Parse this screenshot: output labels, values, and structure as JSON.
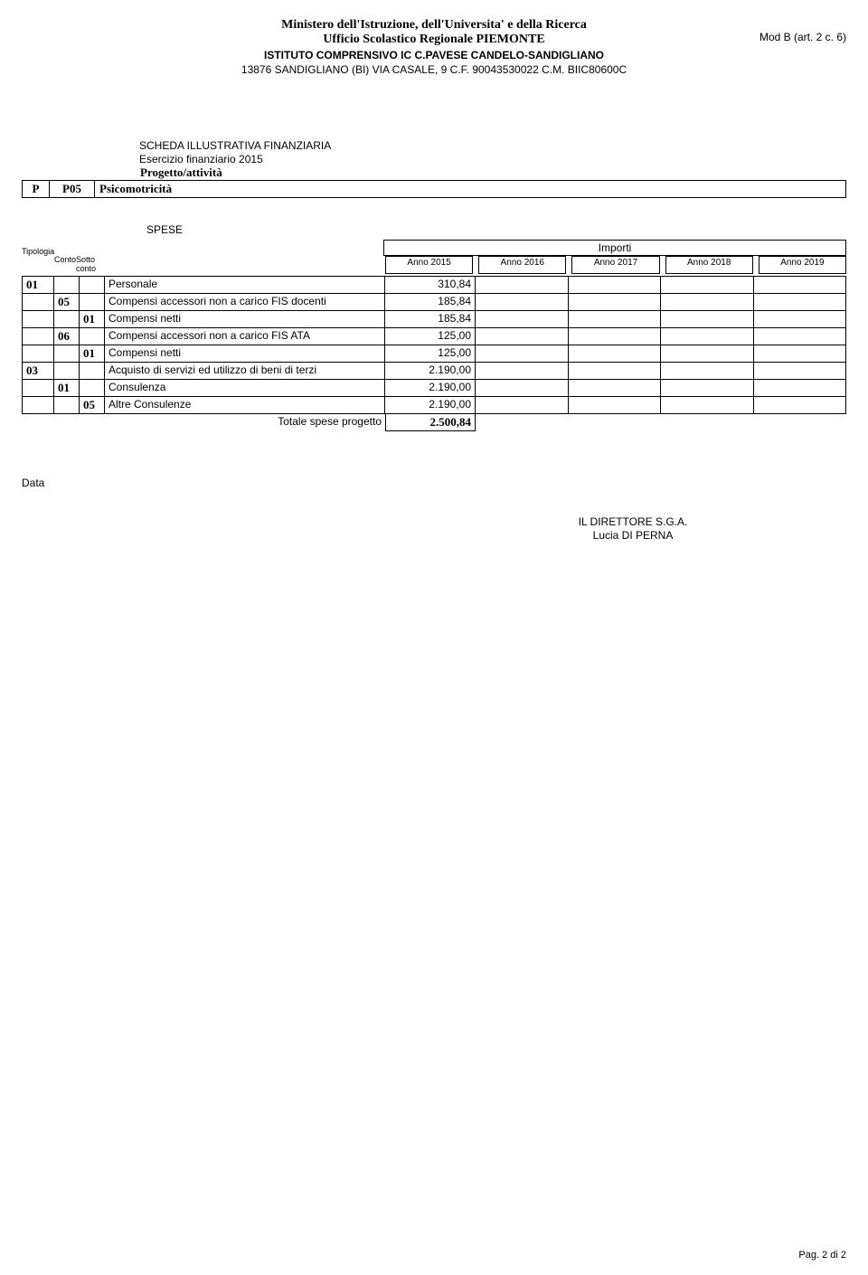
{
  "header": {
    "line1": "Ministero dell'Istruzione, dell'Universita' e della Ricerca",
    "line2": "Ufficio Scolastico Regionale PIEMONTE",
    "line3": "ISTITUTO COMPRENSIVO IC C.PAVESE CANDELO-SANDIGLIANO",
    "line4": "13876 SANDIGLIANO (BI) VIA CASALE, 9 C.F. 90043530022 C.M. BIIC80600C",
    "mod_b": "Mod B (art. 2 c. 6)"
  },
  "scheda": {
    "line1": "SCHEDA ILLUSTRATIVA FINANZIARIA",
    "line2": "Esercizio finanziario 2015"
  },
  "project": {
    "label": "Progetto/attività",
    "p": "P",
    "code": "P05",
    "name": "Psicomotricità"
  },
  "spese": {
    "title": "SPESE",
    "tipologia": "Tipologia",
    "importi": "Importi",
    "conto": "Conto",
    "sottoconto_1": "Sotto",
    "sottoconto_2": "conto",
    "years": [
      "Anno 2015",
      "Anno 2016",
      "Anno 2017",
      "Anno 2018",
      "Anno 2019"
    ],
    "rows": [
      {
        "c1": "01",
        "c2": "",
        "c3": "",
        "desc": "Personale",
        "v1": "310,84"
      },
      {
        "c1": "",
        "c2": "05",
        "c3": "",
        "desc": "Compensi accessori non a carico FIS docenti",
        "v1": "185,84"
      },
      {
        "c1": "",
        "c2": "",
        "c3": "01",
        "desc": "Compensi netti",
        "v1": "185,84"
      },
      {
        "c1": "",
        "c2": "06",
        "c3": "",
        "desc": "Compensi accessori non a carico FIS ATA",
        "v1": "125,00"
      },
      {
        "c1": "",
        "c2": "",
        "c3": "01",
        "desc": "Compensi netti",
        "v1": "125,00"
      },
      {
        "c1": "03",
        "c2": "",
        "c3": "",
        "desc": "Acquisto di servizi ed utilizzo di beni di terzi",
        "v1": "2.190,00"
      },
      {
        "c1": "",
        "c2": "01",
        "c3": "",
        "desc": "Consulenza",
        "v1": "2.190,00"
      },
      {
        "c1": "",
        "c2": "",
        "c3": "05",
        "desc": "Altre Consulenze",
        "v1": "2.190,00"
      }
    ],
    "total_label": "Totale spese progetto",
    "total_value": "2.500,84"
  },
  "footer": {
    "data": "Data",
    "sig1": "IL DIRETTORE S.G.A.",
    "sig2": "Lucia DI PERNA",
    "page": "Pag. 2 di 2"
  }
}
